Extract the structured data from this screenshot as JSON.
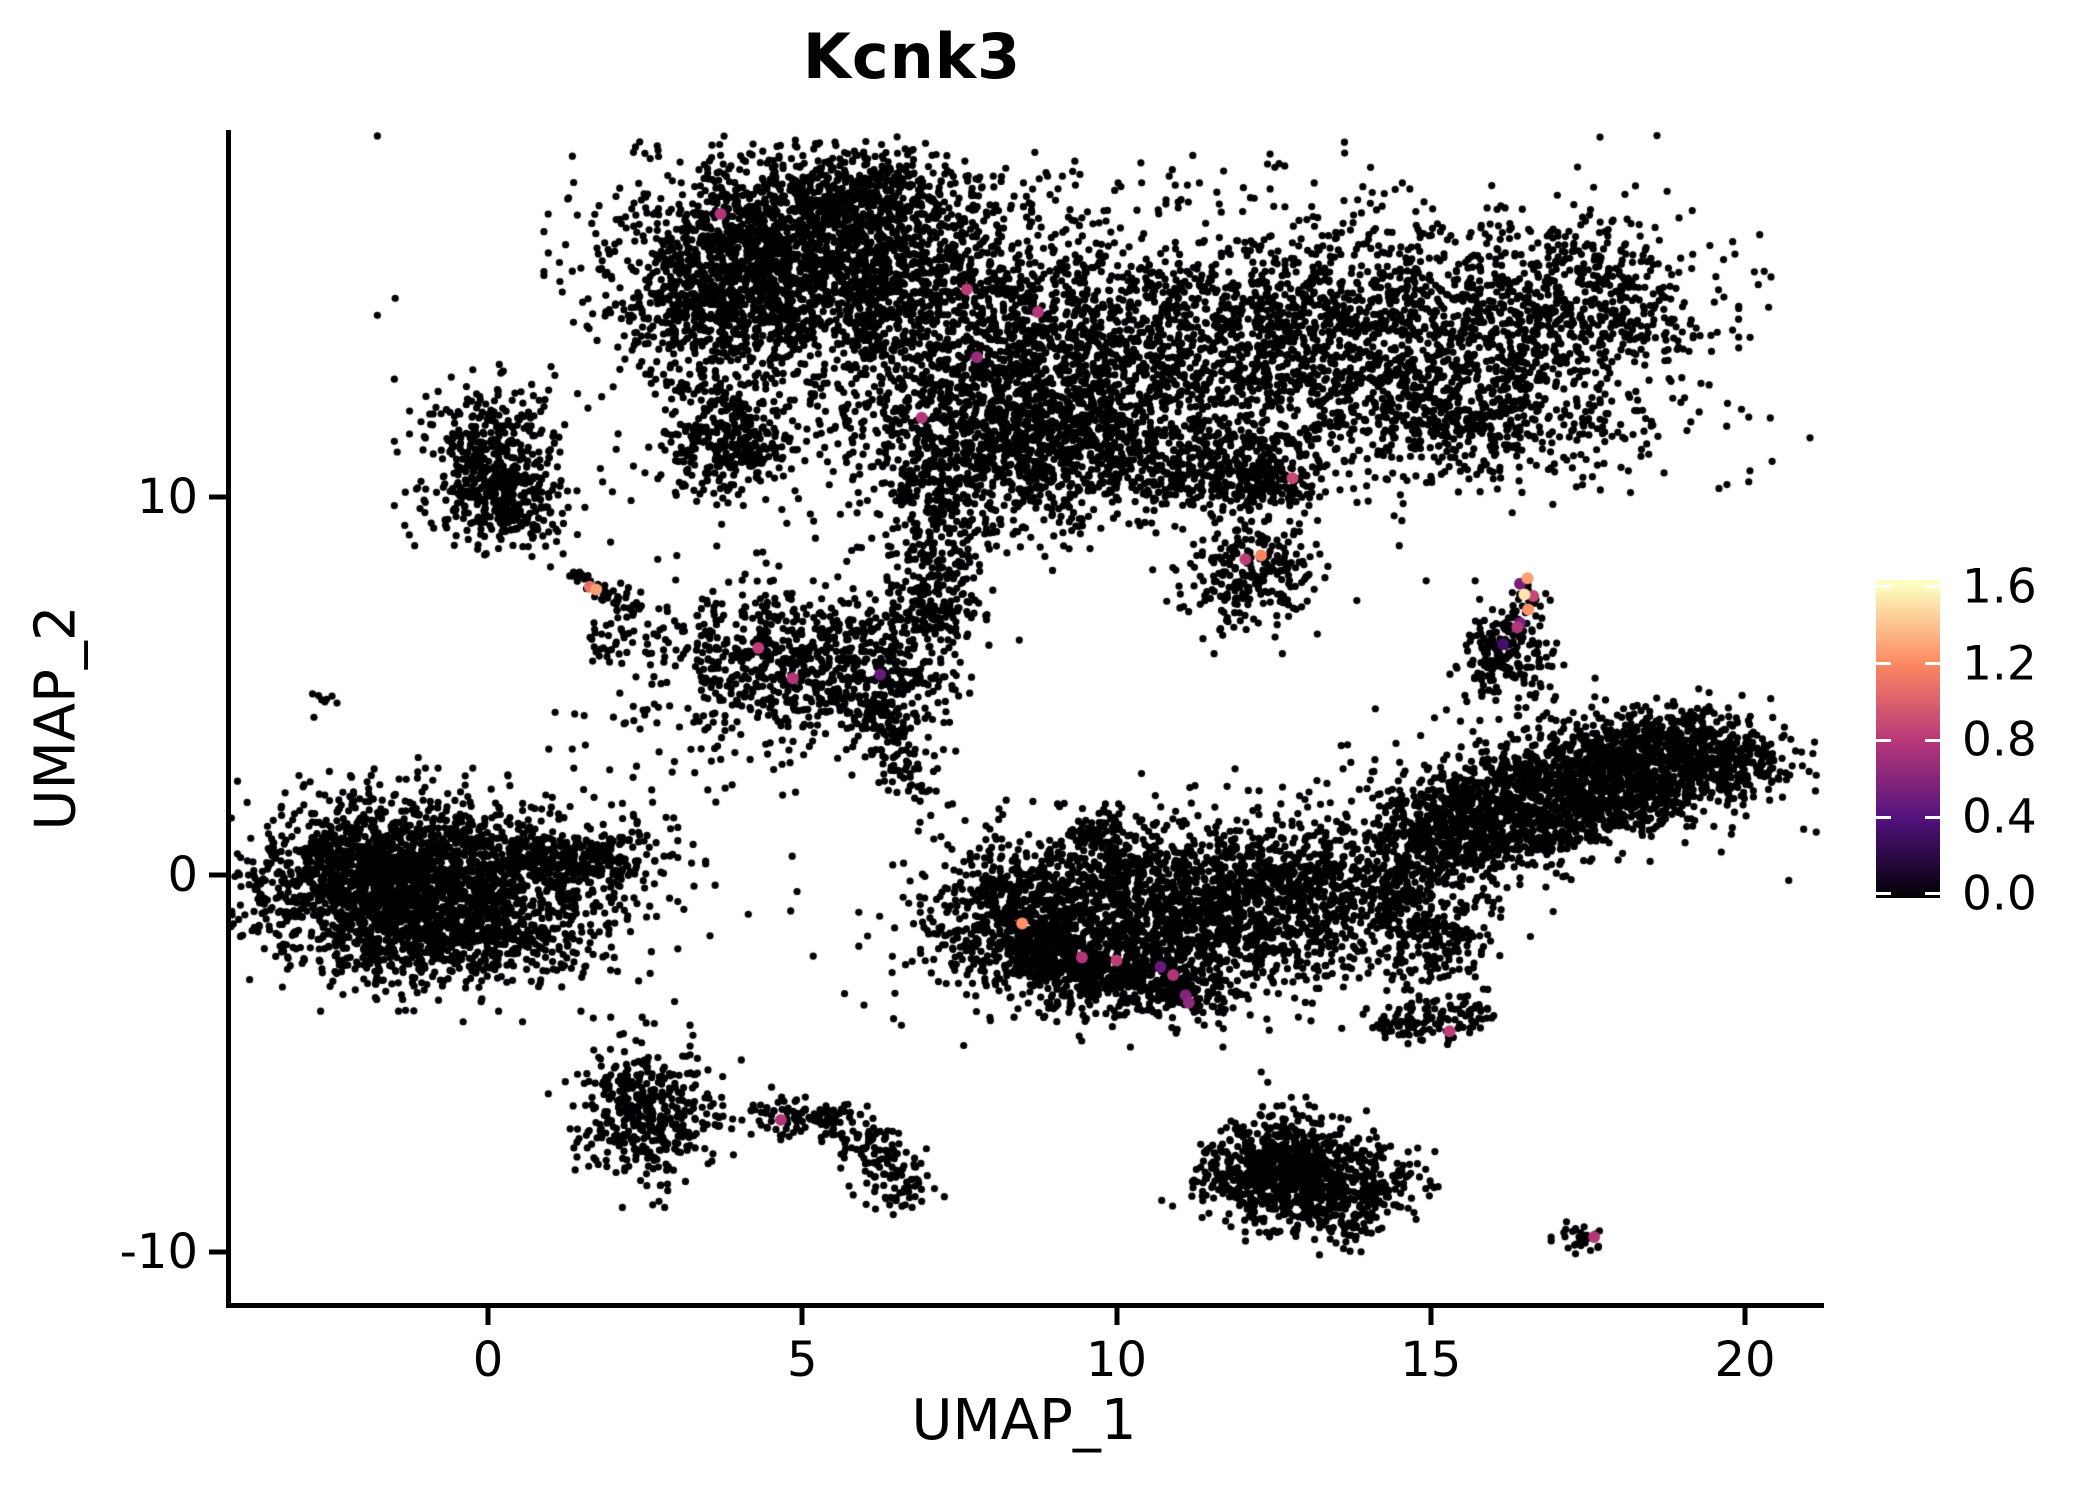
{
  "chart_data": {
    "type": "scatter",
    "title": "Kcnk3",
    "xlabel": "UMAP_1",
    "ylabel": "UMAP_2",
    "xlim": [
      -4.1,
      21.2
    ],
    "ylim": [
      -11.4,
      19.7
    ],
    "grid": false,
    "x_ticks": [
      0,
      5,
      10,
      15,
      20
    ],
    "y_ticks": [
      10,
      0,
      -10
    ],
    "point_color": "#000004",
    "point_radius": 3.6,
    "highlight_radius": 6,
    "rng_seed": 42,
    "colorbar": {
      "position": "right",
      "colormap": "magma",
      "vmin": 0.0,
      "vmax": 1.63,
      "tick_values": [
        1.6,
        1.2,
        0.8,
        0.4,
        0.0
      ],
      "tick_labels": [
        "1.6",
        "1.2",
        "0.8",
        "0.4",
        "0.0"
      ],
      "colormap_stops": [
        [
          0,
          "#000004"
        ],
        [
          0.25,
          "#51127c"
        ],
        [
          0.5,
          "#b73779"
        ],
        [
          0.75,
          "#fc8961"
        ],
        [
          1,
          "#fcfdbf"
        ]
      ]
    },
    "clusters": [
      {
        "t": "g",
        "x": 4.95,
        "y": 16.35,
        "sx": 1.45,
        "sy": 1.35,
        "n": 2000
      },
      {
        "t": "g",
        "x": 6.0,
        "y": 18.0,
        "sx": 0.9,
        "sy": 0.55,
        "n": 300
      },
      {
        "t": "g",
        "x": 3.6,
        "y": 15.0,
        "sx": 0.8,
        "sy": 0.9,
        "n": 350
      },
      {
        "t": "g",
        "x": 8.4,
        "y": 13.6,
        "sx": 1.7,
        "sy": 1.75,
        "n": 1600
      },
      {
        "t": "g",
        "x": 8.3,
        "y": 11.1,
        "sx": 1.2,
        "sy": 1.2,
        "n": 700
      },
      {
        "t": "g",
        "x": 14.3,
        "y": 14.4,
        "sx": 2.0,
        "sy": 1.4,
        "n": 1300
      },
      {
        "t": "g",
        "x": 17.4,
        "y": 15.3,
        "sx": 1.1,
        "sy": 1.0,
        "n": 400
      },
      {
        "t": "g",
        "x": 15.3,
        "y": 12.1,
        "sx": 1.7,
        "sy": 0.9,
        "n": 550
      },
      {
        "t": "g",
        "x": 11.3,
        "y": 13.3,
        "sx": 1.5,
        "sy": 1.5,
        "n": 500
      },
      {
        "t": "g",
        "x": 10.0,
        "y": 14.5,
        "sx": 4.2,
        "sy": 2.4,
        "n": 700
      },
      {
        "t": "p",
        "pts": [
          [
            3.3,
            13.2
          ],
          [
            4.0,
            11.6
          ],
          [
            4.35,
            10.9
          ]
        ],
        "w": 0.35,
        "n": 150
      },
      {
        "t": "g",
        "x": 3.75,
        "y": 11.15,
        "sx": 0.6,
        "sy": 0.62,
        "n": 200
      },
      {
        "t": "p",
        "pts": [
          [
            6.9,
            10.8
          ],
          [
            7.05,
            8.9
          ],
          [
            7.15,
            7.1
          ]
        ],
        "w": 0.4,
        "n": 220
      },
      {
        "t": "g",
        "x": 7.1,
        "y": 6.75,
        "sx": 0.5,
        "sy": 0.33,
        "n": 110
      },
      {
        "t": "p",
        "pts": [
          [
            10.4,
            10.7
          ],
          [
            11.6,
            10.55
          ],
          [
            12.7,
            10.45
          ]
        ],
        "w": 0.5,
        "n": 240
      },
      {
        "t": "g",
        "x": 12.35,
        "y": 10.5,
        "sx": 0.55,
        "sy": 0.55,
        "n": 140
      },
      {
        "t": "g",
        "x": 12.2,
        "y": 7.95,
        "sx": 0.58,
        "sy": 0.75,
        "n": 240
      },
      {
        "t": "p",
        "pts": [
          [
            9.0,
            12.2
          ],
          [
            9.6,
            10.9
          ],
          [
            10.2,
            10.7
          ]
        ],
        "w": 0.5,
        "n": 120
      },
      {
        "t": "g",
        "x": 0.05,
        "y": 11.35,
        "sx": 0.55,
        "sy": 0.85,
        "n": 330
      },
      {
        "t": "g",
        "x": 0.3,
        "y": 9.55,
        "sx": 0.6,
        "sy": 0.5,
        "n": 190
      },
      {
        "t": "p",
        "pts": [
          [
            0.1,
            10.7
          ],
          [
            0.35,
            10.0
          ]
        ],
        "w": 0.35,
        "n": 70
      },
      {
        "t": "g",
        "x": -2.64,
        "y": 4.6,
        "sx": 0.1,
        "sy": 0.16,
        "n": 8
      },
      {
        "t": "p",
        "pts": [
          [
            1.28,
            7.92
          ],
          [
            1.75,
            7.55
          ],
          [
            2.4,
            6.98
          ]
        ],
        "w": 0.13,
        "n": 48
      },
      {
        "t": "g",
        "x": 4.75,
        "y": 5.75,
        "sx": 1.15,
        "sy": 0.9,
        "n": 650
      },
      {
        "t": "g",
        "x": 6.15,
        "y": 4.7,
        "sx": 0.62,
        "sy": 0.75,
        "n": 230
      },
      {
        "t": "p",
        "pts": [
          [
            6.3,
            4.2
          ],
          [
            6.6,
            3.0
          ],
          [
            6.8,
            2.1
          ]
        ],
        "w": 0.25,
        "n": 90
      },
      {
        "t": "g",
        "x": 3.4,
        "y": 3.4,
        "sx": 1.2,
        "sy": 1.0,
        "n": 60
      },
      {
        "t": "g",
        "x": 2.0,
        "y": 6.2,
        "sx": 0.25,
        "sy": 0.3,
        "n": 30
      },
      {
        "t": "g",
        "x": -0.9,
        "y": -0.4,
        "sx": 1.4,
        "sy": 1.15,
        "n": 1900
      },
      {
        "t": "g",
        "x": -2.05,
        "y": 0.1,
        "sx": 0.62,
        "sy": 0.9,
        "n": 450
      },
      {
        "t": "p",
        "pts": [
          [
            0.5,
            0.3
          ],
          [
            1.5,
            0.5
          ],
          [
            2.45,
            0.6
          ]
        ],
        "w": 0.35,
        "n": 220
      },
      {
        "t": "g",
        "x": -0.5,
        "y": -1.8,
        "sx": 1.1,
        "sy": 0.45,
        "n": 250
      },
      {
        "t": "g",
        "x": -0.7,
        "y": -0.4,
        "sx": 2.1,
        "sy": 1.25,
        "n": 300
      },
      {
        "t": "p",
        "pts": [
          [
            9.62,
            1.55
          ],
          [
            9.9,
            0.6
          ],
          [
            10.05,
            -0.1
          ]
        ],
        "w": 0.3,
        "n": 130
      },
      {
        "t": "g",
        "x": 8.45,
        "y": -0.85,
        "sx": 0.55,
        "sy": 0.75,
        "n": 280
      },
      {
        "t": "g",
        "x": 10.1,
        "y": -1.35,
        "sx": 1.5,
        "sy": 1.15,
        "n": 1500
      },
      {
        "t": "p",
        "pts": [
          [
            8.55,
            -1.85
          ],
          [
            9.5,
            -2.55
          ],
          [
            10.75,
            -2.9
          ]
        ],
        "w": 0.45,
        "n": 380
      },
      {
        "t": "g",
        "x": 12.7,
        "y": -0.45,
        "sx": 1.3,
        "sy": 1.05,
        "n": 850
      },
      {
        "t": "p",
        "pts": [
          [
            10.95,
            -2.85
          ],
          [
            11.15,
            -3.45
          ]
        ],
        "w": 0.3,
        "n": 110
      },
      {
        "t": "g",
        "x": 11.0,
        "y": -0.7,
        "sx": 2.2,
        "sy": 1.25,
        "n": 350
      },
      {
        "t": "p",
        "pts": [
          [
            14.25,
            0.4
          ],
          [
            14.95,
            -1.4
          ],
          [
            15.2,
            -2.55
          ]
        ],
        "w": 0.45,
        "n": 300
      },
      {
        "t": "p",
        "pts": [
          [
            14.75,
            0.85
          ],
          [
            16.5,
            1.85
          ],
          [
            18.3,
            2.85
          ],
          [
            19.6,
            3.25
          ]
        ],
        "w": 0.7,
        "n": 1700
      },
      {
        "t": "p",
        "pts": [
          [
            15.4,
            2.1
          ],
          [
            17.9,
            3.5
          ],
          [
            19.4,
            3.85
          ]
        ],
        "w": 0.35,
        "n": 260
      },
      {
        "t": "g",
        "x": 19.85,
        "y": 3.05,
        "sx": 0.5,
        "sy": 0.5,
        "n": 180
      },
      {
        "t": "p",
        "pts": [
          [
            15.0,
            0.15
          ],
          [
            17.0,
            1.05
          ],
          [
            19.0,
            2.2
          ]
        ],
        "w": 0.35,
        "n": 260
      },
      {
        "t": "g",
        "x": 17.2,
        "y": 2.4,
        "sx": 2.0,
        "sy": 1.0,
        "n": 220
      },
      {
        "t": "p",
        "pts": [
          [
            14.15,
            -4.05
          ],
          [
            15.0,
            -3.85
          ],
          [
            15.85,
            -3.55
          ]
        ],
        "w": 0.3,
        "n": 130
      },
      {
        "t": "g",
        "x": 16.2,
        "y": 5.75,
        "sx": 0.33,
        "sy": 0.55,
        "n": 190
      },
      {
        "t": "p",
        "pts": [
          [
            16.32,
            6.45
          ],
          [
            16.55,
            7.1
          ],
          [
            16.5,
            7.85
          ]
        ],
        "w": 0.15,
        "n": 40
      },
      {
        "t": "g",
        "x": 2.5,
        "y": -6.3,
        "sx": 0.55,
        "sy": 0.9,
        "n": 400
      },
      {
        "t": "p",
        "pts": [
          [
            4.25,
            -6.45
          ],
          [
            5.2,
            -6.35
          ],
          [
            6.05,
            -6.95
          ],
          [
            6.55,
            -7.85
          ],
          [
            6.5,
            -8.85
          ]
        ],
        "w": 0.28,
        "n": 240
      },
      {
        "t": "p",
        "pts": [
          [
            3.1,
            -6.5
          ],
          [
            3.9,
            -6.4
          ]
        ],
        "w": 0.15,
        "n": 10
      },
      {
        "t": "p",
        "pts": [
          [
            12.0,
            -7.15
          ],
          [
            13.0,
            -8.0
          ],
          [
            13.95,
            -8.95
          ]
        ],
        "w": 0.7,
        "n": 850
      },
      {
        "t": "g",
        "x": 12.6,
        "y": -7.8,
        "sx": 0.5,
        "sy": 0.6,
        "n": 250
      },
      {
        "t": "p",
        "pts": [
          [
            17.0,
            -9.45
          ],
          [
            17.75,
            -9.75
          ]
        ],
        "w": 0.16,
        "n": 32
      },
      {
        "t": "g",
        "x": 6.0,
        "y": 7.5,
        "sx": 2.0,
        "sy": 1.5,
        "n": 25
      }
    ],
    "expressing_cells": [
      {
        "x": 3.7,
        "y": 17.5,
        "v": 0.8
      },
      {
        "x": 7.62,
        "y": 15.5,
        "v": 0.85
      },
      {
        "x": 8.75,
        "y": 14.9,
        "v": 0.8
      },
      {
        "x": 7.78,
        "y": 13.7,
        "v": 0.7
      },
      {
        "x": 6.9,
        "y": 12.1,
        "v": 0.8
      },
      {
        "x": 12.8,
        "y": 10.5,
        "v": 0.9
      },
      {
        "x": 12.05,
        "y": 8.35,
        "v": 0.85
      },
      {
        "x": 12.3,
        "y": 8.45,
        "v": 1.2
      },
      {
        "x": 1.72,
        "y": 7.55,
        "v": 1.3
      },
      {
        "x": 1.62,
        "y": 7.62,
        "v": 1.1
      },
      {
        "x": 4.3,
        "y": 6.0,
        "v": 0.85
      },
      {
        "x": 4.85,
        "y": 5.2,
        "v": 0.8
      },
      {
        "x": 6.24,
        "y": 5.3,
        "v": 0.5
      },
      {
        "x": 16.54,
        "y": 7.85,
        "v": 1.3
      },
      {
        "x": 16.42,
        "y": 7.7,
        "v": 0.55
      },
      {
        "x": 16.49,
        "y": 7.42,
        "v": 1.55
      },
      {
        "x": 16.63,
        "y": 7.38,
        "v": 0.9
      },
      {
        "x": 16.55,
        "y": 7.02,
        "v": 1.25
      },
      {
        "x": 16.42,
        "y": 6.66,
        "v": 0.55
      },
      {
        "x": 16.38,
        "y": 6.55,
        "v": 0.8
      },
      {
        "x": 16.15,
        "y": 6.1,
        "v": 0.35
      },
      {
        "x": 8.5,
        "y": -1.3,
        "v": 1.25
      },
      {
        "x": 9.45,
        "y": -2.2,
        "v": 0.8
      },
      {
        "x": 10.0,
        "y": -2.28,
        "v": 0.85
      },
      {
        "x": 10.7,
        "y": -2.45,
        "v": 0.5
      },
      {
        "x": 10.9,
        "y": -2.66,
        "v": 0.8
      },
      {
        "x": 11.1,
        "y": -3.2,
        "v": 0.6
      },
      {
        "x": 11.15,
        "y": -3.4,
        "v": 0.65
      },
      {
        "x": 15.3,
        "y": -4.15,
        "v": 0.85
      },
      {
        "x": 4.66,
        "y": -6.5,
        "v": 0.8
      },
      {
        "x": 17.6,
        "y": -9.6,
        "v": 0.8
      }
    ]
  }
}
